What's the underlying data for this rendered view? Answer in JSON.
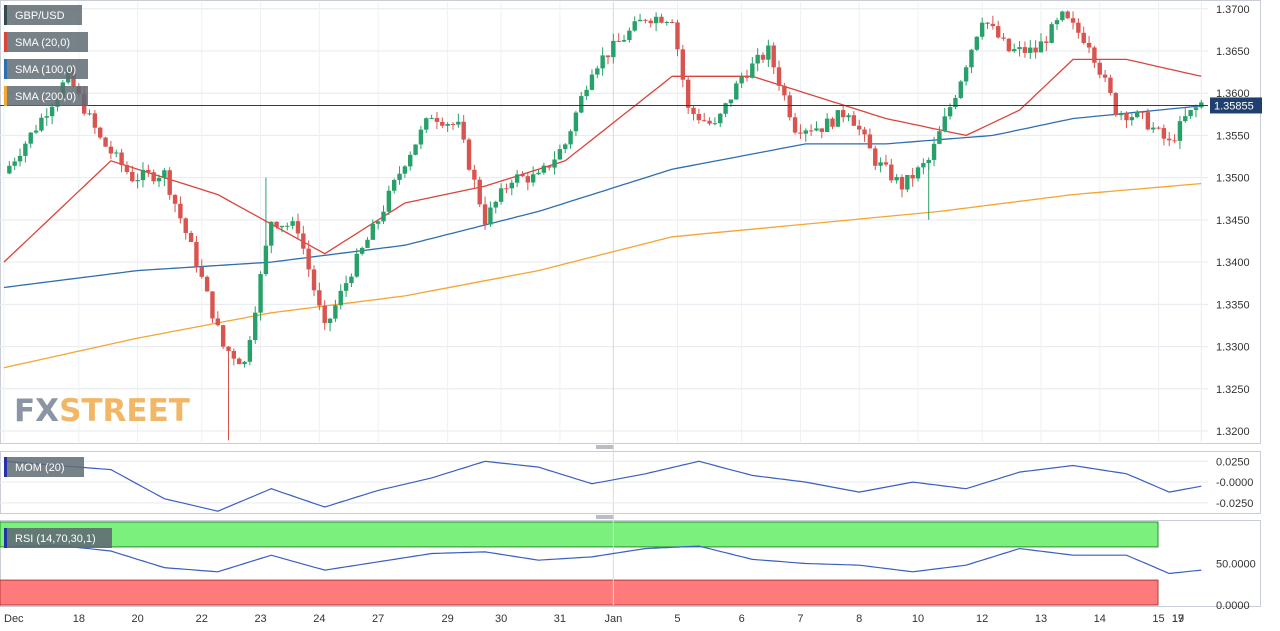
{
  "chart_data": [
    {
      "type": "candlestick",
      "symbol_label": "GBP/USD",
      "watermark": {
        "part1": "FX",
        "part2": "STREET"
      },
      "last_price_label": "1.35855",
      "y_ticks": [
        "1.3700",
        "1.3650",
        "1.3600",
        "1.3550",
        "1.3500",
        "1.3450",
        "1.3400",
        "1.3350",
        "1.3300",
        "1.3250",
        "1.3200"
      ],
      "ylim": [
        1.3187,
        1.3708
      ],
      "x_ticks": [
        "Dec",
        "18",
        "20",
        "22",
        "23",
        "24",
        "27",
        "29",
        "30",
        "31",
        "Jan",
        "5",
        "6",
        "7",
        "8",
        "10",
        "12",
        "13",
        "14",
        "15",
        "17",
        "19"
      ],
      "colors": {
        "up": "#27a069",
        "down": "#d9534f",
        "sma20": "#d9453b",
        "sma100": "#2f6fb0",
        "sma200": "#f3a633",
        "last_price": "#1f3f6e"
      },
      "legend": [
        {
          "label": "GBP/USD",
          "color": "#37474f"
        },
        {
          "label": "SMA (20,0)",
          "color": "#d9453b"
        },
        {
          "label": "SMA (100,0)",
          "color": "#2f6fb0"
        },
        {
          "label": "SMA (200,0)",
          "color": "#f3a633"
        }
      ],
      "anchors": [
        [
          0,
          1.3505
        ],
        [
          6,
          1.356
        ],
        [
          12,
          1.362
        ],
        [
          18,
          1.3545
        ],
        [
          24,
          1.35
        ],
        [
          30,
          1.3505
        ],
        [
          36,
          1.34
        ],
        [
          41,
          1.33
        ],
        [
          45,
          1.328
        ],
        [
          50,
          1.345
        ],
        [
          55,
          1.344
        ],
        [
          60,
          1.332
        ],
        [
          65,
          1.339
        ],
        [
          70,
          1.345
        ],
        [
          75,
          1.352
        ],
        [
          80,
          1.3575
        ],
        [
          85,
          1.356
        ],
        [
          90,
          1.345
        ],
        [
          95,
          1.35
        ],
        [
          100,
          1.35
        ],
        [
          105,
          1.354
        ],
        [
          110,
          1.363
        ],
        [
          115,
          1.366
        ],
        [
          120,
          1.369
        ],
        [
          125,
          1.369
        ],
        [
          128,
          1.358
        ],
        [
          133,
          1.356
        ],
        [
          138,
          1.362
        ],
        [
          143,
          1.365
        ],
        [
          148,
          1.356
        ],
        [
          153,
          1.356
        ],
        [
          158,
          1.358
        ],
        [
          163,
          1.352
        ],
        [
          168,
          1.349
        ],
        [
          173,
          1.352
        ],
        [
          178,
          1.36
        ],
        [
          183,
          1.369
        ],
        [
          188,
          1.365
        ],
        [
          193,
          1.365
        ],
        [
          198,
          1.369
        ],
        [
          203,
          1.366
        ],
        [
          208,
          1.358
        ],
        [
          213,
          1.357
        ],
        [
          218,
          1.354
        ],
        [
          221,
          1.357
        ],
        [
          224,
          1.3588
        ]
      ],
      "sma20": [
        [
          0,
          1.34
        ],
        [
          20,
          1.352
        ],
        [
          40,
          1.348
        ],
        [
          60,
          1.341
        ],
        [
          75,
          1.347
        ],
        [
          90,
          1.349
        ],
        [
          105,
          1.352
        ],
        [
          115,
          1.357
        ],
        [
          125,
          1.362
        ],
        [
          140,
          1.362
        ],
        [
          155,
          1.359
        ],
        [
          165,
          1.357
        ],
        [
          180,
          1.355
        ],
        [
          190,
          1.358
        ],
        [
          200,
          1.364
        ],
        [
          210,
          1.364
        ],
        [
          224,
          1.362
        ]
      ],
      "sma100": [
        [
          0,
          1.337
        ],
        [
          25,
          1.339
        ],
        [
          50,
          1.34
        ],
        [
          75,
          1.342
        ],
        [
          100,
          1.346
        ],
        [
          125,
          1.351
        ],
        [
          150,
          1.354
        ],
        [
          165,
          1.354
        ],
        [
          185,
          1.355
        ],
        [
          200,
          1.357
        ],
        [
          224,
          1.3585
        ]
      ],
      "sma200": [
        [
          0,
          1.3275
        ],
        [
          25,
          1.331
        ],
        [
          50,
          1.334
        ],
        [
          75,
          1.336
        ],
        [
          100,
          1.339
        ],
        [
          125,
          1.343
        ],
        [
          150,
          1.3445
        ],
        [
          175,
          1.346
        ],
        [
          200,
          1.348
        ],
        [
          224,
          1.3493
        ]
      ]
    },
    {
      "type": "line",
      "label": "MOM (20)",
      "y_ticks": [
        "0.0250",
        "-0.0000",
        "-0.0250"
      ],
      "ylim": [
        -0.036,
        0.035
      ],
      "series": [
        {
          "values": [
            [
              0,
              0.025
            ],
            [
              10,
              0.02
            ],
            [
              20,
              0.015
            ],
            [
              30,
              -0.02
            ],
            [
              40,
              -0.035
            ],
            [
              50,
              -0.008
            ],
            [
              60,
              -0.03
            ],
            [
              70,
              -0.01
            ],
            [
              80,
              0.005
            ],
            [
              90,
              0.025
            ],
            [
              100,
              0.018
            ],
            [
              110,
              -0.002
            ],
            [
              120,
              0.01
            ],
            [
              130,
              0.025
            ],
            [
              140,
              0.008
            ],
            [
              150,
              0.0
            ],
            [
              160,
              -0.012
            ],
            [
              170,
              0.0
            ],
            [
              180,
              -0.008
            ],
            [
              190,
              0.012
            ],
            [
              200,
              0.02
            ],
            [
              210,
              0.01
            ],
            [
              218,
              -0.012
            ],
            [
              224,
              -0.005
            ]
          ]
        }
      ]
    },
    {
      "type": "line",
      "label": "RSI (14,70,30,1)",
      "y_ticks": [
        "50.0000",
        "0.0000"
      ],
      "ylim": [
        0,
        100
      ],
      "bands": {
        "upper": 70,
        "lower": 30
      },
      "series": [
        {
          "values": [
            [
              0,
              70
            ],
            [
              10,
              72
            ],
            [
              20,
              65
            ],
            [
              30,
              45
            ],
            [
              40,
              40
            ],
            [
              50,
              60
            ],
            [
              60,
              42
            ],
            [
              70,
              52
            ],
            [
              80,
              62
            ],
            [
              90,
              64
            ],
            [
              100,
              54
            ],
            [
              110,
              58
            ],
            [
              120,
              68
            ],
            [
              130,
              71
            ],
            [
              140,
              55
            ],
            [
              150,
              50
            ],
            [
              160,
              48
            ],
            [
              170,
              40
            ],
            [
              180,
              48
            ],
            [
              190,
              68
            ],
            [
              200,
              60
            ],
            [
              210,
              60
            ],
            [
              218,
              38
            ],
            [
              224,
              42
            ]
          ]
        }
      ]
    }
  ]
}
